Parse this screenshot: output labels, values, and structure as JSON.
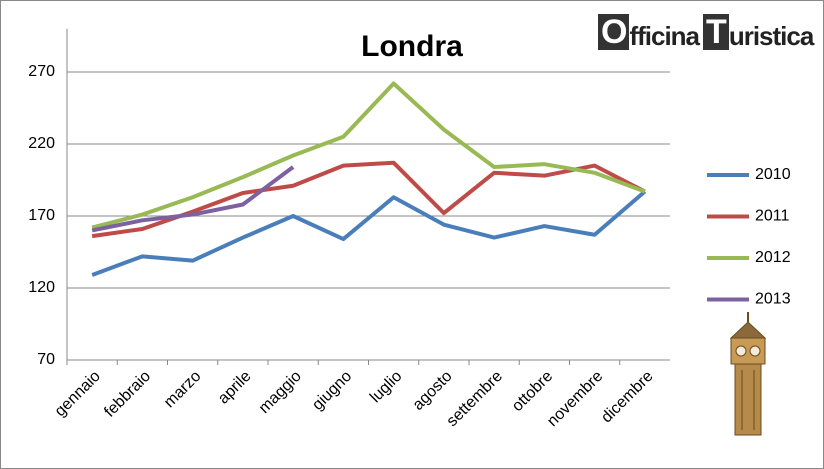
{
  "chart_data": {
    "type": "line",
    "title": "Londra",
    "logo": [
      "O",
      "fficina",
      "T",
      "uristica"
    ],
    "categories": [
      "gennaio",
      "febbraio",
      "marzo",
      "aprile",
      "maggio",
      "giugno",
      "luglio",
      "agosto",
      "settembre",
      "ottobre",
      "novembre",
      "dicembre"
    ],
    "series": [
      {
        "name": "2010",
        "color": "#4a7ebb",
        "values": [
          129,
          142,
          139,
          155,
          170,
          154,
          183,
          164,
          155,
          163,
          157,
          187
        ]
      },
      {
        "name": "2011",
        "color": "#be4b48",
        "values": [
          156,
          161,
          173,
          186,
          191,
          205,
          207,
          172,
          200,
          198,
          205,
          187
        ]
      },
      {
        "name": "2012",
        "color": "#98b954",
        "values": [
          162,
          171,
          183,
          197,
          212,
          225,
          262,
          230,
          204,
          206,
          200,
          187
        ]
      },
      {
        "name": "2013",
        "color": "#7d60a0",
        "values": [
          160,
          167,
          171,
          178,
          204,
          null,
          null,
          null,
          null,
          null,
          null,
          null
        ]
      }
    ],
    "ylim": [
      70,
      300
    ],
    "yticks": [
      70,
      120,
      170,
      220,
      270
    ],
    "grid": true,
    "legend": "right"
  }
}
